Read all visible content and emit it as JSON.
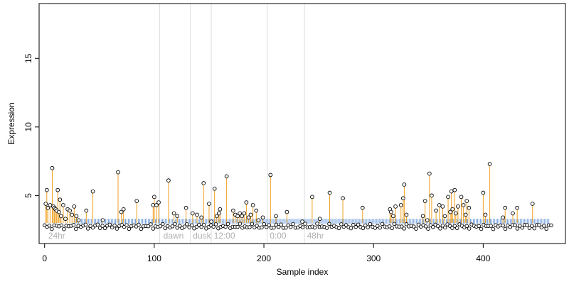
{
  "chart_data": {
    "type": "scatter",
    "title": "",
    "xlabel": "Sample index",
    "ylabel": "Expression",
    "xlim": [
      -5,
      475
    ],
    "ylim": [
      1.5,
      19
    ],
    "x_ticks": [
      0,
      100,
      200,
      300,
      400
    ],
    "y_ticks": [
      5,
      10,
      15
    ],
    "grid": false,
    "region_separators_x": [
      105,
      133,
      152,
      203,
      237
    ],
    "region_labels": [
      {
        "text": "24hr",
        "x": 2
      },
      {
        "text": "dawn",
        "x": 107
      },
      {
        "text": "dusk",
        "x": 134
      },
      {
        "text": "12:00",
        "x": 153
      },
      {
        "text": "0:00",
        "x": 204
      },
      {
        "text": "48hr",
        "x": 238
      }
    ],
    "baseline_band": {
      "ymin": 2.95,
      "ymax": 3.3,
      "x_from": 27,
      "x_to": 460,
      "color": "#7aa5df"
    },
    "stem_color": "#f0a020",
    "stem_base": 3.0,
    "series": [
      {
        "x": [
          1,
          2,
          3,
          5,
          7,
          8,
          9,
          10,
          11,
          12,
          13,
          14,
          15,
          17,
          19,
          21,
          23,
          25,
          27,
          29,
          31,
          38,
          44,
          53,
          67,
          70,
          72,
          84,
          99,
          100,
          102,
          104,
          113,
          118,
          121,
          129,
          135,
          139,
          143,
          145,
          150,
          152,
          155,
          157,
          159,
          160,
          166,
          172,
          174,
          176,
          178,
          180,
          182,
          184,
          186,
          188,
          190,
          193,
          195,
          199,
          206,
          211,
          221,
          235,
          244,
          251,
          260,
          272,
          290,
          315,
          316,
          318,
          320,
          325,
          327,
          328,
          330,
          345,
          347,
          349,
          351,
          353,
          357,
          360,
          363,
          365,
          368,
          370,
          371,
          372,
          374,
          375,
          377,
          380,
          382,
          384,
          385,
          387,
          400,
          402,
          406,
          418,
          420,
          427,
          431,
          445
        ],
        "y": [
          4.4,
          5.4,
          4.1,
          4.3,
          7.0,
          4.2,
          4.1,
          4.0,
          3.9,
          5.4,
          3.8,
          4.7,
          3.5,
          4.3,
          3.3,
          4.0,
          3.9,
          3.6,
          4.2,
          3.5,
          3.2,
          3.9,
          5.3,
          3.2,
          6.7,
          3.8,
          4.0,
          4.6,
          4.3,
          4.9,
          4.3,
          4.5,
          6.1,
          3.7,
          3.5,
          4.1,
          3.7,
          3.6,
          3.4,
          5.9,
          4.4,
          3.1,
          5.5,
          3.5,
          3.7,
          4.0,
          6.4,
          3.9,
          3.6,
          3.5,
          3.7,
          3.5,
          3.7,
          4.5,
          3.4,
          3.6,
          4.3,
          3.9,
          3.2,
          3.4,
          6.5,
          3.5,
          3.8,
          3.1,
          4.9,
          3.3,
          5.2,
          4.8,
          4.1,
          4.0,
          3.8,
          3.5,
          4.2,
          4.3,
          4.8,
          5.8,
          3.6,
          3.5,
          4.6,
          3.2,
          6.6,
          5.0,
          3.9,
          4.3,
          4.2,
          3.5,
          4.9,
          3.8,
          5.3,
          4.0,
          5.4,
          3.7,
          4.2,
          4.9,
          4.3,
          3.6,
          4.6,
          4.1,
          5.2,
          3.6,
          7.3,
          3.4,
          4.1,
          3.7,
          4.1,
          4.4
        ]
      }
    ]
  }
}
